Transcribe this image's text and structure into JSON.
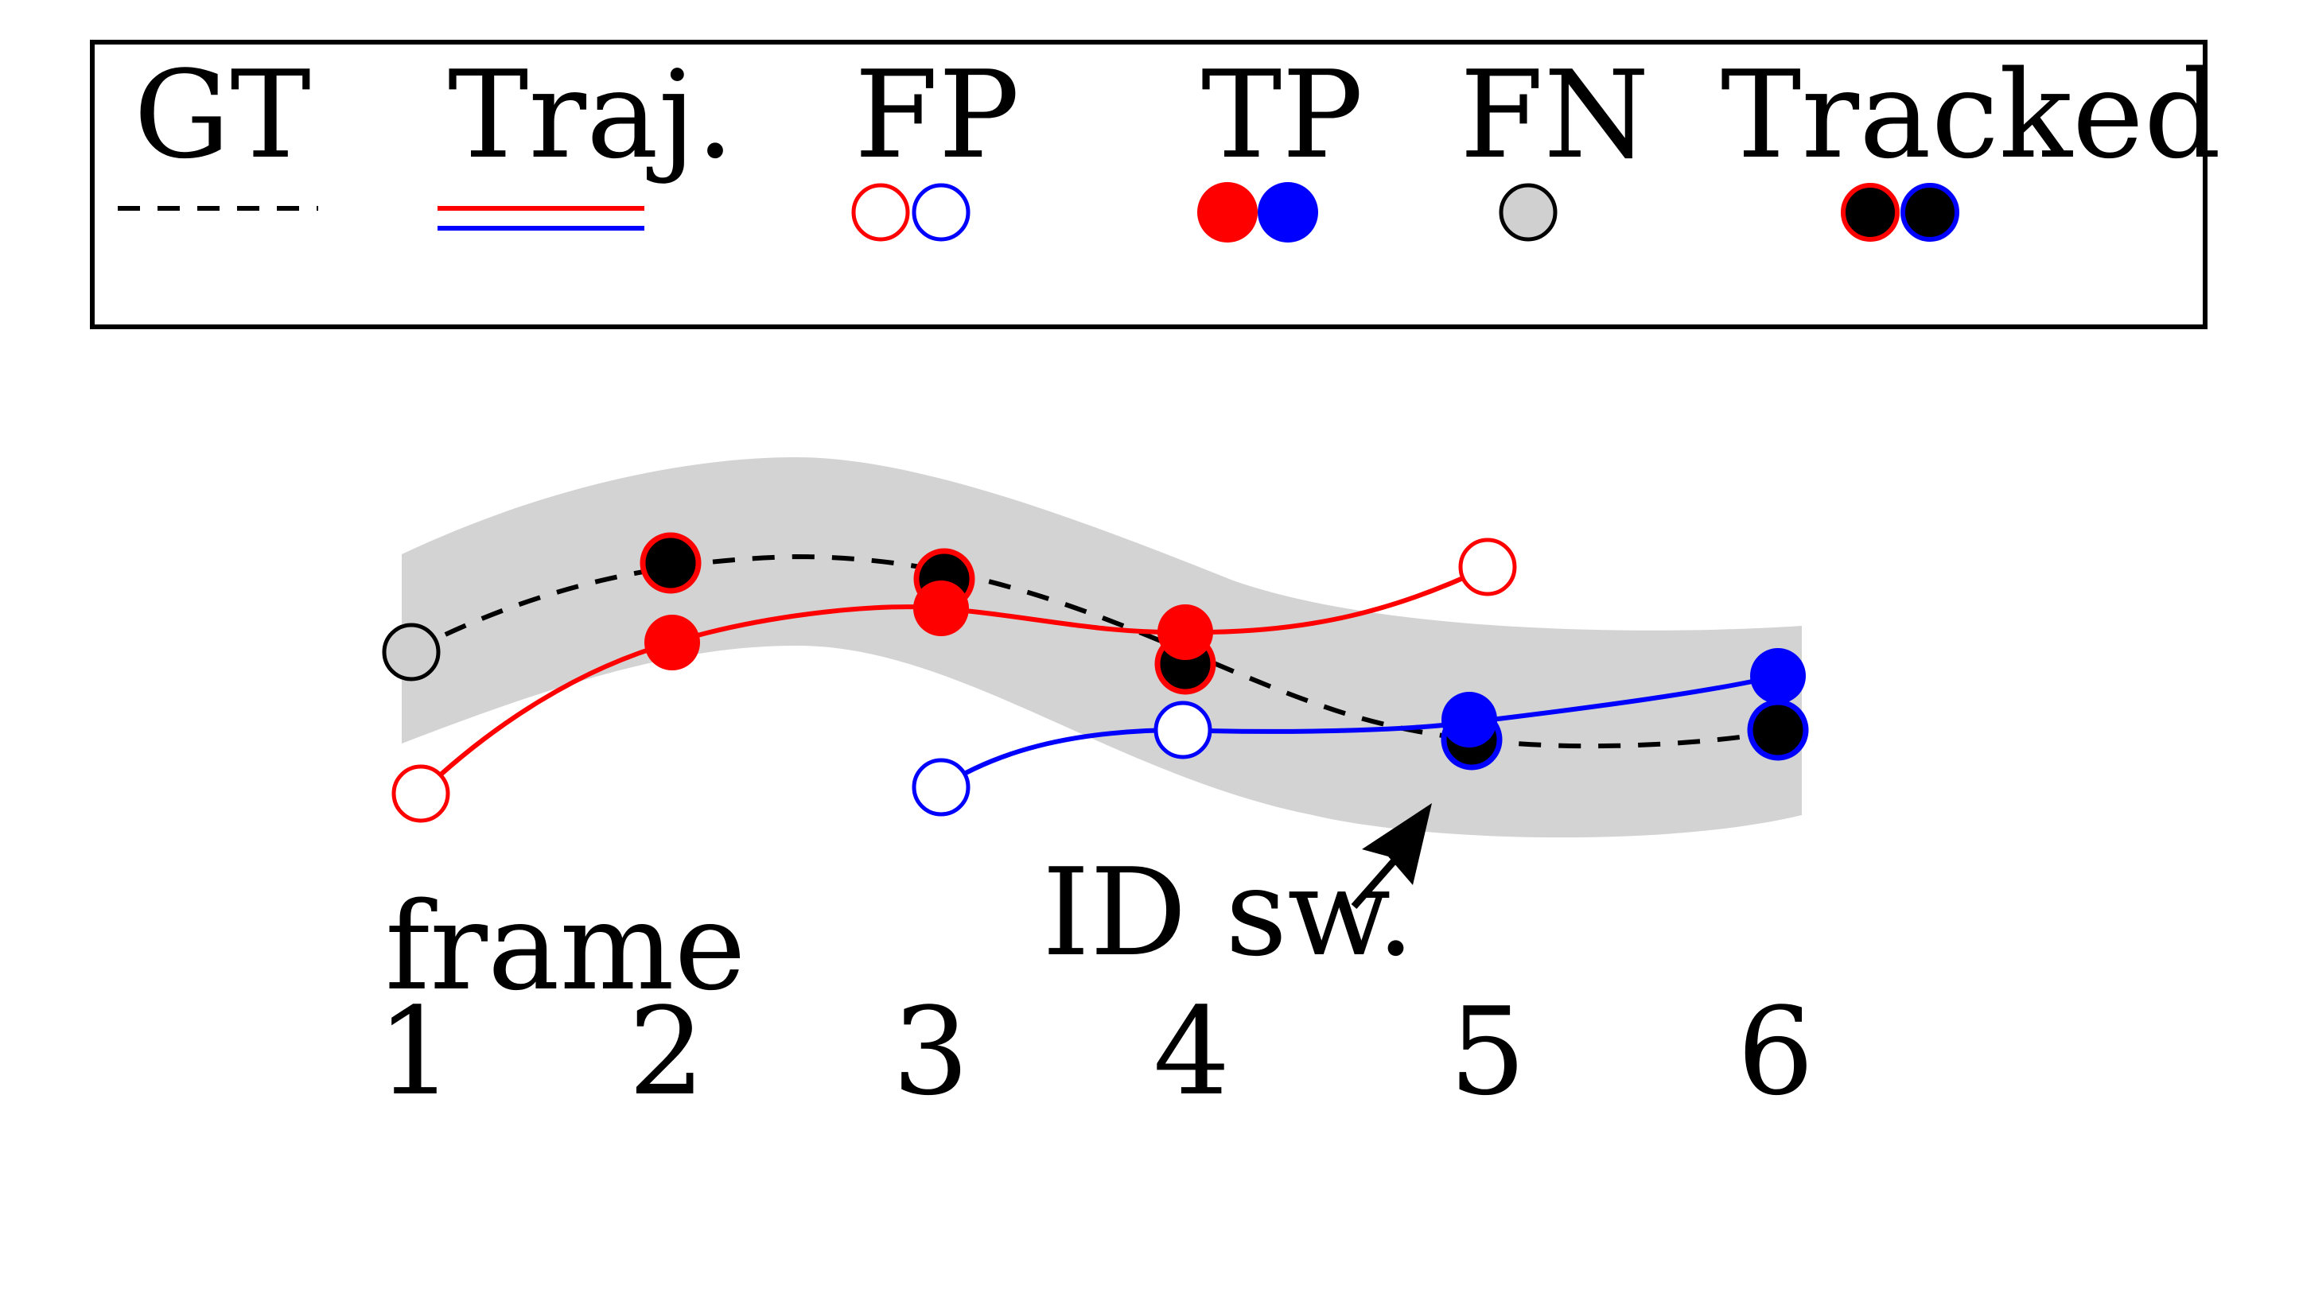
{
  "legend": {
    "items": [
      {
        "label": "GT",
        "marker": "dashed-black-line"
      },
      {
        "label": "Traj.",
        "marker": "red-and-blue-solid-lines"
      },
      {
        "label": "FP",
        "marker": "hollow-red-and-blue-circles"
      },
      {
        "label": "TP",
        "marker": "filled-red-and-blue-circles"
      },
      {
        "label": "FN",
        "marker": "gray-circle"
      },
      {
        "label": "Tracked",
        "marker": "black-circles-red-and-blue-outline"
      }
    ]
  },
  "frame_axis": {
    "title": "frame",
    "ticks": [
      "1",
      "2",
      "3",
      "4",
      "5",
      "6"
    ]
  },
  "annotation": {
    "text": "ID sw."
  },
  "colors": {
    "red_track": "#ff0000",
    "blue_track": "#0000ff",
    "gt": "#000000",
    "band": "#d3d3d3",
    "fn_fill": "#d0d0d0",
    "tracked_fill": "#000000"
  }
}
